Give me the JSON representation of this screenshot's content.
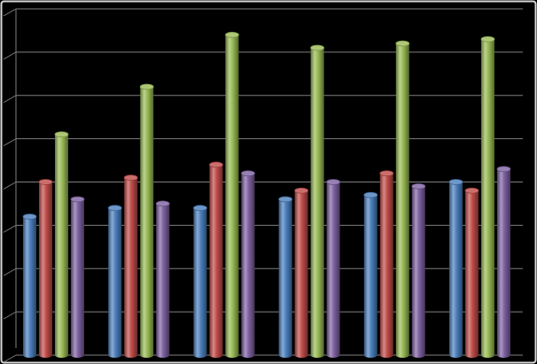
{
  "chart_data": {
    "type": "bar",
    "title": "",
    "xlabel": "",
    "ylabel": "",
    "categories": [
      "",
      "",
      "",
      "",
      "",
      ""
    ],
    "ylim": [
      0,
      8
    ],
    "grid": true,
    "legend": "none",
    "style": "3d-cylinder",
    "series": [
      {
        "color": "#4a7ebb",
        "values": [
          3.2,
          3.4,
          3.4,
          3.6,
          3.7,
          4.0
        ]
      },
      {
        "color": "#be4b48",
        "values": [
          4.0,
          4.1,
          4.4,
          3.8,
          4.2,
          3.8
        ]
      },
      {
        "color": "#98b954",
        "values": [
          5.1,
          6.2,
          7.4,
          7.1,
          7.2,
          7.3
        ]
      },
      {
        "color": "#7d60a0",
        "values": [
          3.6,
          3.5,
          4.2,
          4.0,
          3.9,
          4.3
        ]
      }
    ]
  },
  "colors": {
    "background": "#000000",
    "gridline": "#7f7f7f",
    "frame": "#d9d9d9"
  }
}
